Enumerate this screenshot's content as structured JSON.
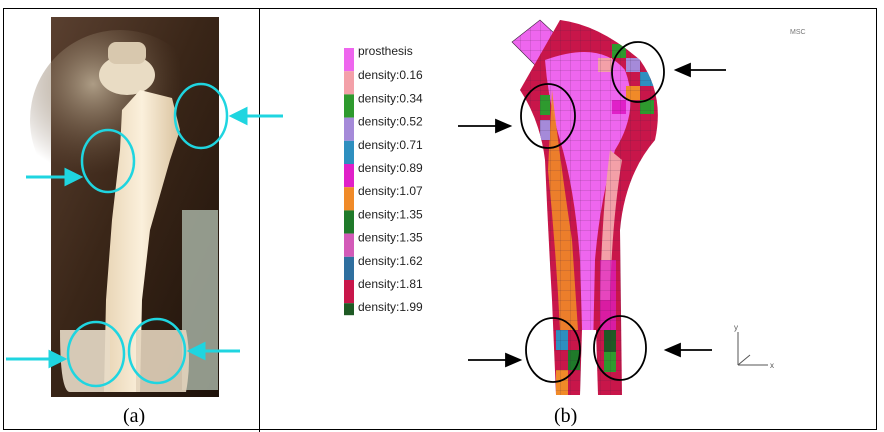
{
  "captions": {
    "a": "(a)",
    "b": "(b)"
  },
  "legend": {
    "title": "prosthesis",
    "title_color": "#ee66ee",
    "items": [
      {
        "label": "density:0.16",
        "color": "#f3a0a8"
      },
      {
        "label": "density:0.34",
        "color": "#2e9a2e"
      },
      {
        "label": "density:0.52",
        "color": "#a58ad9"
      },
      {
        "label": "density:0.71",
        "color": "#2e8fbf"
      },
      {
        "label": "density:0.89",
        "color": "#e020c8"
      },
      {
        "label": "density:1.07",
        "color": "#f08a28"
      },
      {
        "label": "density:1.35",
        "color": "#1f7a2a"
      },
      {
        "label": "density:1.35",
        "color": "#d35ab8"
      },
      {
        "label": "density:1.62",
        "color": "#2f6f9f"
      },
      {
        "label": "density:1.81",
        "color": "#c8164a"
      },
      {
        "label": "density:1.99",
        "color": "#1e5a24"
      }
    ]
  },
  "corner_mark": "MSC",
  "axis_labels": {
    "x": "x",
    "y": "y"
  }
}
